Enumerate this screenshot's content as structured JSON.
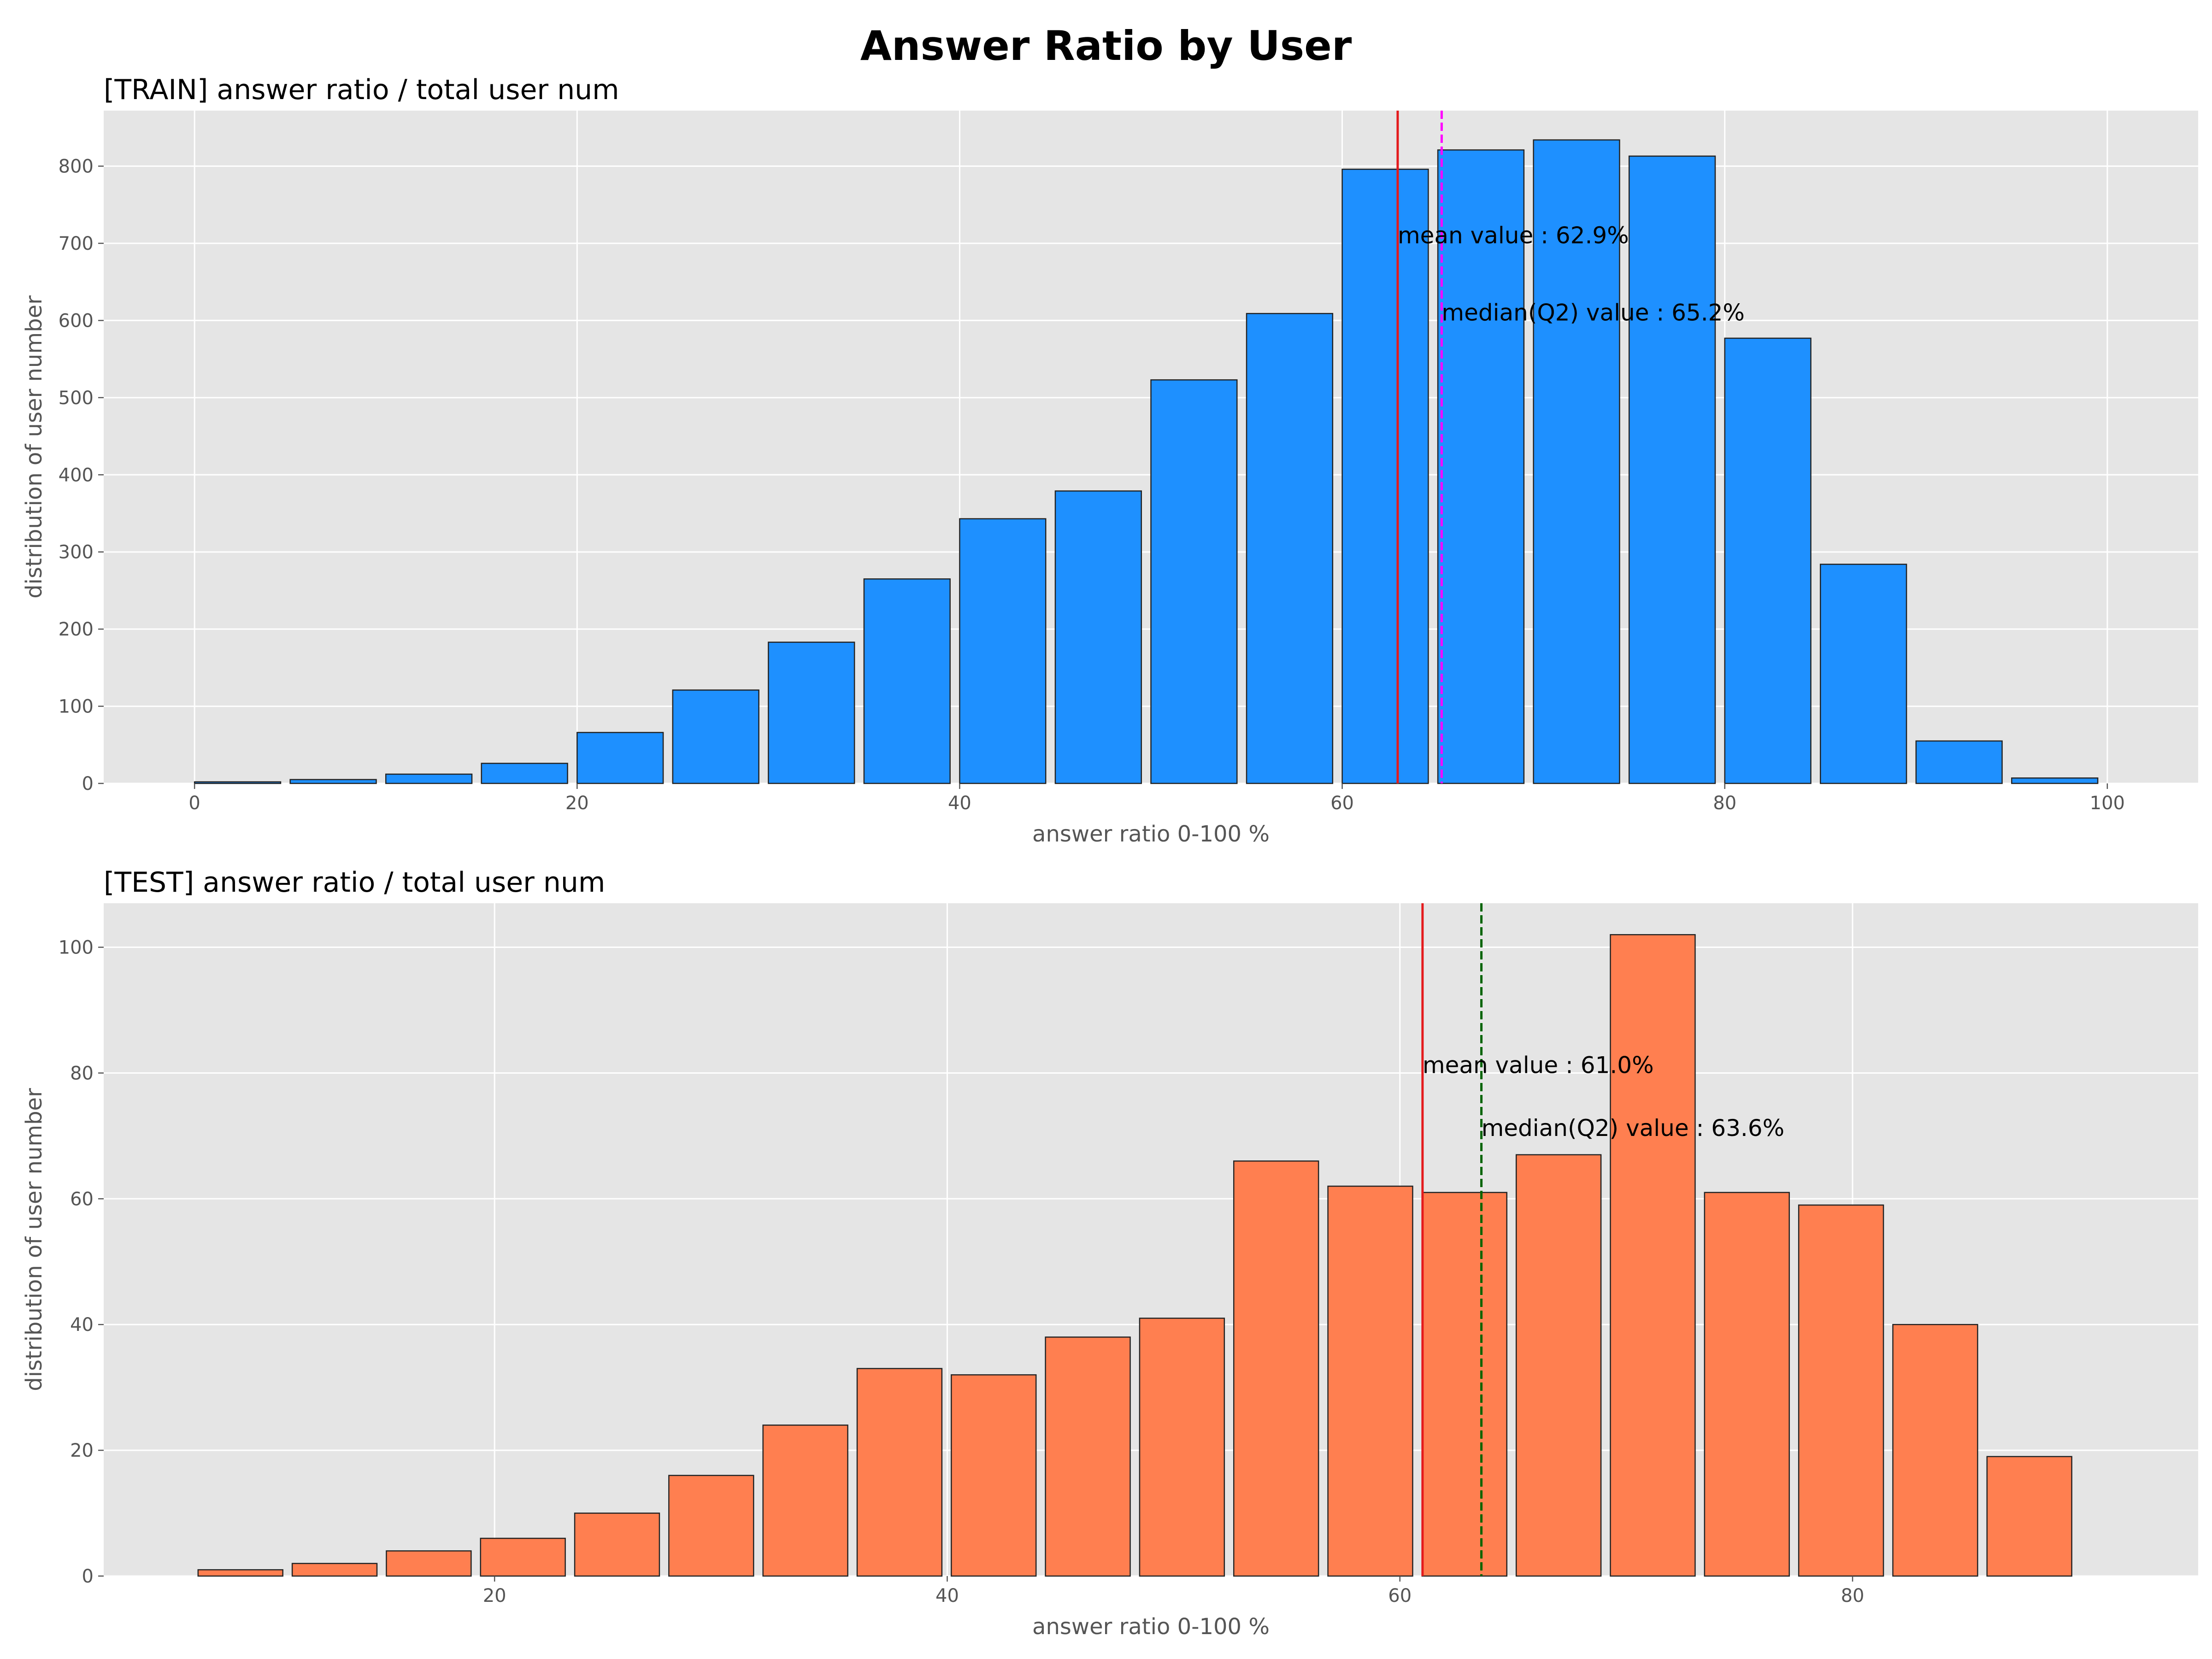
{
  "title": "Answer Ratio by User",
  "colors": {
    "train_bar": "#1e90ff",
    "test_bar": "#ff7f50",
    "bar_edge": "#222222",
    "axes_bg": "#e5e5e5",
    "grid": "#ffffff",
    "mean_line": "#e41a1c",
    "train_median_line": "#ff00ff",
    "test_median_line": "#006400"
  },
  "chart_data": [
    {
      "type": "bar",
      "title": "[TRAIN] answer ratio / total user num",
      "xlabel": "answer ratio 0-100 %",
      "ylabel": "distribution of user number",
      "xlim": [
        -4.75,
        104.75
      ],
      "ylim": [
        0,
        872
      ],
      "xticks": [
        0,
        20,
        40,
        60,
        80,
        100
      ],
      "yticks": [
        0,
        100,
        200,
        300,
        400,
        500,
        600,
        700,
        800
      ],
      "grid": true,
      "bin_edges": [
        0,
        5,
        10,
        15,
        20,
        25,
        30,
        35,
        40,
        45,
        50,
        55,
        60,
        65,
        70,
        75,
        80,
        85,
        90,
        95,
        100
      ],
      "values": [
        2,
        5,
        12,
        26,
        66,
        121,
        183,
        265,
        343,
        379,
        523,
        609,
        796,
        821,
        834,
        813,
        577,
        284,
        55,
        7
      ],
      "mean": 62.9,
      "median": 65.2,
      "mean_label": "mean value : 62.9%",
      "mean_label_y": 700,
      "median_label": "median(Q2) value : 65.2%",
      "median_label_y": 600
    },
    {
      "type": "bar",
      "title": "[TEST] answer ratio / total user num",
      "xlabel": "answer ratio 0-100 %",
      "ylabel": "distribution of user number",
      "xlim": [
        2.73,
        95.27
      ],
      "ylim": [
        0,
        107
      ],
      "xticks": [
        20,
        40,
        60,
        80
      ],
      "yticks": [
        0,
        20,
        40,
        60,
        80,
        100
      ],
      "grid": true,
      "bin_edges": [
        6.9,
        11.06,
        15.22,
        19.38,
        23.54,
        27.7,
        31.86,
        36.02,
        40.18,
        44.34,
        48.5,
        52.66,
        56.82,
        60.98,
        65.14,
        69.3,
        73.46,
        77.62,
        81.78,
        85.94,
        90.1
      ],
      "values": [
        1,
        2,
        4,
        6,
        10,
        16,
        24,
        33,
        32,
        38,
        41,
        66,
        62,
        61,
        67,
        102,
        61,
        59,
        40,
        19
      ],
      "mean": 61.0,
      "median": 63.6,
      "mean_label": "mean value : 61.0%",
      "mean_label_y": 80,
      "median_label": "median(Q2) value : 63.6%",
      "median_label_y": 70
    }
  ]
}
